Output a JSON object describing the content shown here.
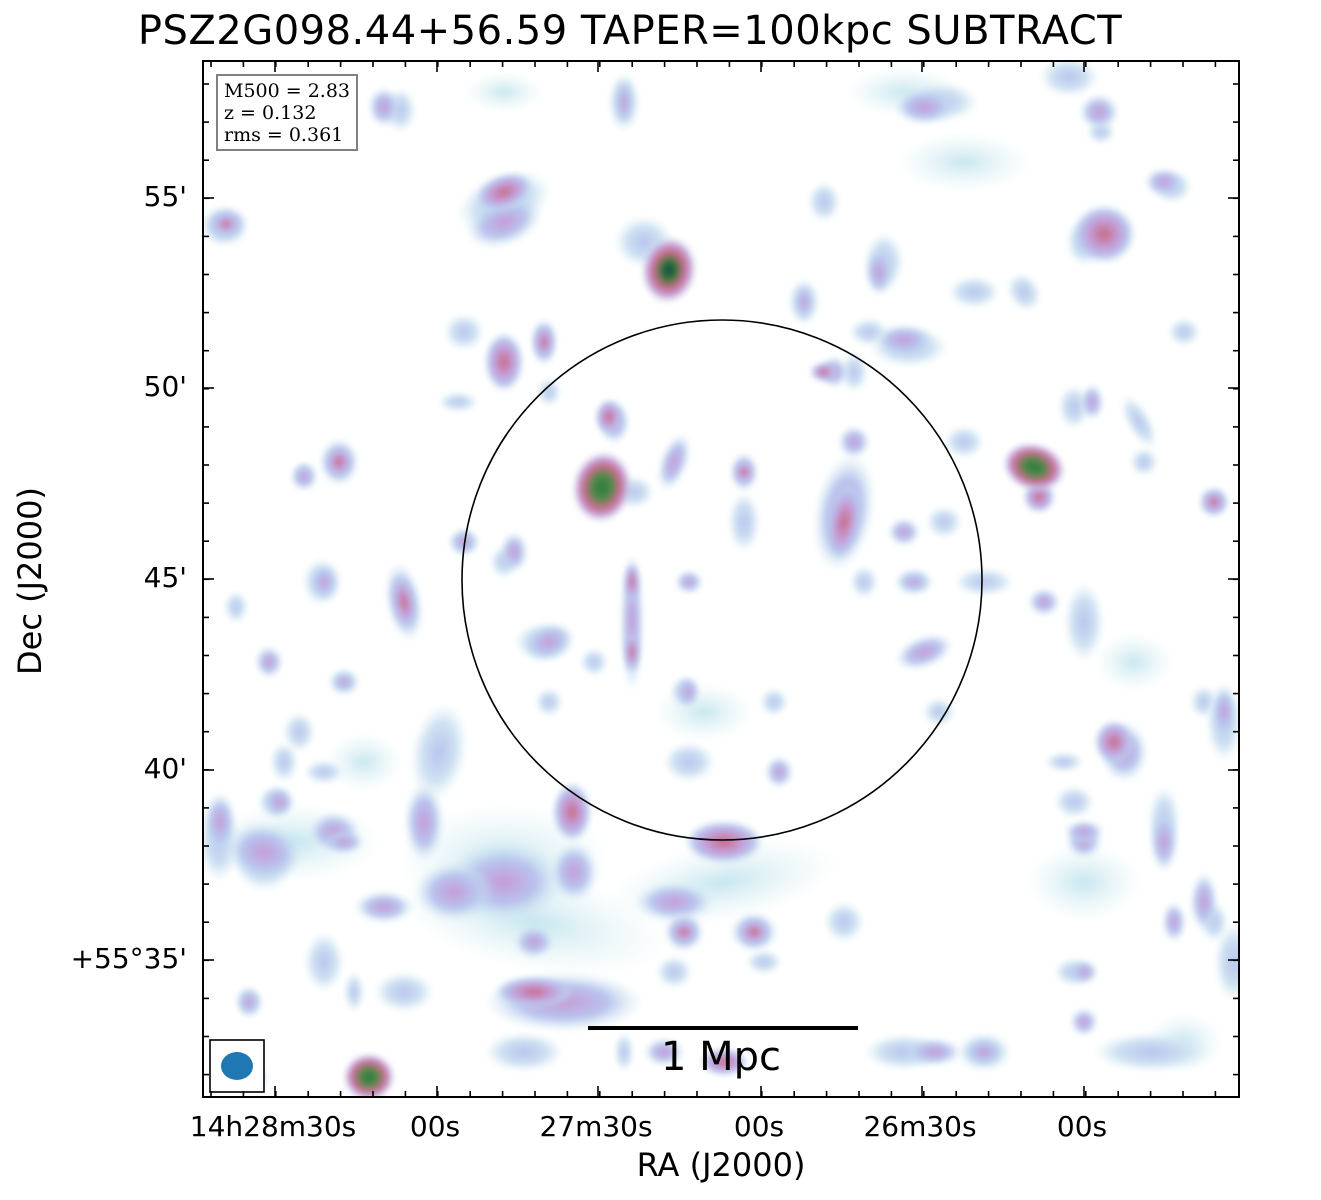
{
  "figure": {
    "title": "PSZ2G098.44+56.59 TAPER=100kpc SUBTRACT",
    "info": {
      "line1": "M500 = 2.83",
      "line2": "z = 0.132",
      "line3": "rms = 0.361"
    },
    "xaxis": {
      "label": "RA (J2000)",
      "ticks": [
        "14h28m30s",
        "00s",
        "27m30s",
        "00s",
        "26m30s",
        "00s"
      ]
    },
    "yaxis": {
      "label": "Dec (J2000)",
      "ticks": [
        "55'",
        "50'",
        "45'",
        "40'",
        "+55°35'"
      ]
    },
    "scalebar": {
      "label": "1 Mpc"
    },
    "colors": {
      "faint": "#cfeaf0",
      "low": "#b8c4ee",
      "mid": "#c59bd6",
      "high": "#c76a82",
      "peak": "#2f7a3a",
      "core": "#1a5a4a",
      "beam": "#1f77b4",
      "circle": "#000000"
    }
  }
}
